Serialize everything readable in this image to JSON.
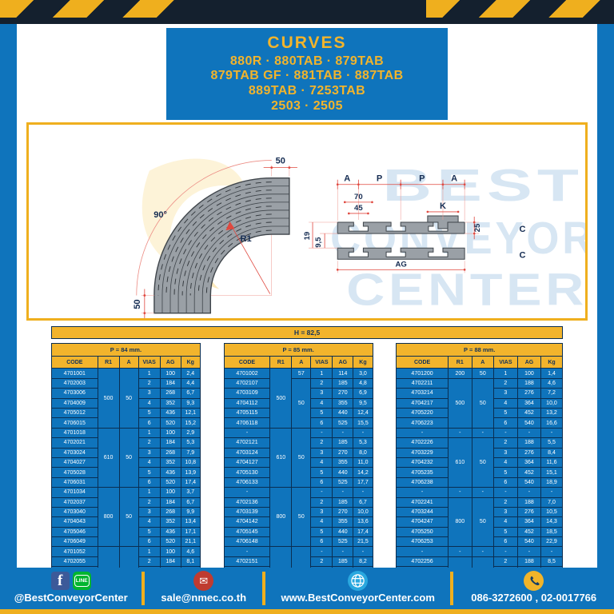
{
  "header": {
    "lines": [
      "CURVES",
      "880R · 880TAB · 879TAB",
      "879TAB GF · 881TAB · 887TAB",
      "889TAB · 7253TAB",
      "2503 · 2505"
    ]
  },
  "watermark": {
    "line1": "BEST",
    "line2": "CONVEYOR",
    "line3": "CENTER"
  },
  "drawing": {
    "curve": {
      "dim_top": "50",
      "dim_left": "50",
      "angle": "90°",
      "radius_label": "R1"
    },
    "section": {
      "dim_a1": "A",
      "dim_p1": "P",
      "dim_p2": "P",
      "dim_a2": "A",
      "dim_70": "70",
      "dim_45": "45",
      "dim_k": "K",
      "dim_25": "25",
      "dim_19": "19",
      "dim_95": "9,5",
      "c1": "C",
      "c2": "C",
      "ag": "AG"
    }
  },
  "h_bar": {
    "label": "H = 82,5"
  },
  "tables": [
    {
      "title": "P = 84 mm.",
      "columns": [
        "CODE",
        "R1",
        "A",
        "VIAS",
        "AG",
        "Kg"
      ],
      "rows": [
        [
          "4701001",
          {
            "v": "500",
            "rs": 6
          },
          {
            "v": "50",
            "rs": 6
          },
          "1",
          "100",
          "2,4"
        ],
        [
          "4702003",
          "2",
          "184",
          "4,4"
        ],
        [
          "4703006",
          "3",
          "268",
          "6,7"
        ],
        [
          "4704009",
          "4",
          "352",
          "9,3"
        ],
        [
          "4705012",
          "5",
          "436",
          "12,1"
        ],
        [
          "4706015",
          "6",
          "520",
          "15,2"
        ],
        [
          "4701018",
          {
            "v": "610",
            "rs": 6
          },
          {
            "v": "50",
            "rs": 6
          },
          "1",
          "100",
          "2,9"
        ],
        [
          "4702021",
          "2",
          "184",
          "5,3"
        ],
        [
          "4703024",
          "3",
          "268",
          "7,9"
        ],
        [
          "4704027",
          "4",
          "352",
          "10,8"
        ],
        [
          "4705028",
          "5",
          "436",
          "13,9"
        ],
        [
          "4706031",
          "6",
          "520",
          "17,4"
        ],
        [
          "4701034",
          {
            "v": "800",
            "rs": 6
          },
          {
            "v": "50",
            "rs": 6
          },
          "1",
          "100",
          "3,7"
        ],
        [
          "4702037",
          "2",
          "184",
          "6,7"
        ],
        [
          "4703040",
          "3",
          "268",
          "9,9"
        ],
        [
          "4704043",
          "4",
          "352",
          "13,4"
        ],
        [
          "4705046",
          "5",
          "436",
          "17,1"
        ],
        [
          "4706049",
          "6",
          "520",
          "21,1"
        ],
        [
          "4701052",
          {
            "v": "1000",
            "rs": 6
          },
          {
            "v": "50",
            "rs": 6
          },
          "1",
          "100",
          "4,6"
        ],
        [
          "4702055",
          "2",
          "184",
          "8,1"
        ],
        [
          "4703058",
          "3",
          "268",
          "12,0"
        ],
        [
          "4704061",
          "4",
          "352",
          "16,1"
        ],
        [
          "4705064",
          "5",
          "436",
          "20,4"
        ],
        [
          "4706067",
          "6",
          "520",
          "25,0"
        ]
      ]
    },
    {
      "title": "P = 85 mm.",
      "columns": [
        "CODE",
        "R1",
        "A",
        "VIAS",
        "AG",
        "Kg"
      ],
      "rows": [
        [
          "4701002",
          {
            "v": "500",
            "rs": 6
          },
          "57",
          "1",
          "114",
          "3,0"
        ],
        [
          "4702107",
          {
            "v": "50",
            "rs": 5
          },
          "2",
          "185",
          "4,8"
        ],
        [
          "4703109",
          "3",
          "270",
          "6,9"
        ],
        [
          "4704112",
          "4",
          "355",
          "9,5"
        ],
        [
          "4705115",
          "5",
          "440",
          "12,4"
        ],
        [
          "4706118",
          "6",
          "525",
          "15,5"
        ],
        [
          "-",
          {
            "v": "610",
            "rs": 6
          },
          {
            "v": "50",
            "rs": 6
          },
          "-",
          "-",
          "-"
        ],
        [
          "4702121",
          "2",
          "185",
          "5,3"
        ],
        [
          "4703124",
          "3",
          "270",
          "8,0"
        ],
        [
          "4704127",
          "4",
          "355",
          "11,0"
        ],
        [
          "4705130",
          "5",
          "440",
          "14,2"
        ],
        [
          "4706133",
          "6",
          "525",
          "17,7"
        ],
        [
          "-",
          {
            "v": "800",
            "rs": 6
          },
          {
            "v": "50",
            "rs": 6
          },
          "-",
          "-",
          "-"
        ],
        [
          "4702136",
          "2",
          "185",
          "6,7"
        ],
        [
          "4703139",
          "3",
          "270",
          "10,0"
        ],
        [
          "4704142",
          "4",
          "355",
          "13,6"
        ],
        [
          "4705145",
          "5",
          "440",
          "17,4"
        ],
        [
          "4706148",
          "6",
          "525",
          "21,5"
        ],
        [
          "-",
          {
            "v": "1000",
            "rs": 6
          },
          {
            "v": "50",
            "rs": 6
          },
          "-",
          "-",
          "-"
        ],
        [
          "4702151",
          "2",
          "185",
          "8,2"
        ],
        [
          "4703154",
          "3",
          "270",
          "12,2"
        ],
        [
          "4704157",
          "4",
          "355",
          "16,3"
        ],
        [
          "4705161",
          "5",
          "440",
          "20,8"
        ],
        [
          "4706164",
          "6",
          "525",
          "25,5"
        ]
      ]
    },
    {
      "title": "P = 88 mm.",
      "columns": [
        "CODE",
        "R1",
        "A",
        "VIAS",
        "AG",
        "Kg"
      ],
      "rows": [
        [
          "4701200",
          "200",
          "50",
          "1",
          "100",
          "1,4"
        ],
        [
          "4702211",
          {
            "v": "500",
            "rs": 5
          },
          {
            "v": "50",
            "rs": 5
          },
          "2",
          "188",
          "4,6"
        ],
        [
          "4703214",
          "3",
          "276",
          "7,2"
        ],
        [
          "4704217",
          "4",
          "364",
          "10,0"
        ],
        [
          "4705220",
          "5",
          "452",
          "13,2"
        ],
        [
          "4706223",
          "6",
          "540",
          "16,6"
        ],
        [
          "-",
          "-",
          "-",
          "-",
          "-",
          "-"
        ],
        [
          "4702226",
          {
            "v": "610",
            "rs": 5
          },
          {
            "v": "50",
            "rs": 5
          },
          "2",
          "188",
          "5,5"
        ],
        [
          "4703229",
          "3",
          "276",
          "8,4"
        ],
        [
          "4704232",
          "4",
          "364",
          "11,6"
        ],
        [
          "4705235",
          "5",
          "452",
          "15,1"
        ],
        [
          "4706238",
          "6",
          "540",
          "18,9"
        ],
        [
          "-",
          "-",
          "-",
          "-",
          "-",
          "-"
        ],
        [
          "4702241",
          {
            "v": "800",
            "rs": 5
          },
          {
            "v": "50",
            "rs": 5
          },
          "2",
          "188",
          "7,0"
        ],
        [
          "4703244",
          "3",
          "276",
          "10,5"
        ],
        [
          "4704247",
          "4",
          "364",
          "14,3"
        ],
        [
          "4705250",
          "5",
          "452",
          "18,5"
        ],
        [
          "4706253",
          "6",
          "540",
          "22,9"
        ],
        [
          "-",
          "-",
          "-",
          "-",
          "-",
          "-"
        ],
        [
          "4702256",
          {
            "v": "1000",
            "rs": 5
          },
          {
            "v": "50",
            "rs": 5
          },
          "2",
          "188",
          "8,5"
        ],
        [
          "4703259",
          "3",
          "276",
          "12,7"
        ],
        [
          "4704262",
          "4",
          "364",
          "17,2"
        ],
        [
          "4705265",
          "5",
          "452",
          "22,0"
        ],
        [
          "4706268",
          "6",
          "540",
          "27,2"
        ]
      ]
    }
  ],
  "footer": {
    "social_label": "@BestConveyorCenter",
    "email": "sale@nmec.co.th",
    "website": "www.BestConveyorCenter.com",
    "phones": "086-3272600 , 02-0017766",
    "line_text": "LINE",
    "fb_letter": "f",
    "mail_glyph": "✉"
  },
  "colors": {
    "blue": "#0f74bc",
    "gold": "#efaf1e",
    "navy": "#14202e",
    "table_header": "#f2b42c"
  }
}
